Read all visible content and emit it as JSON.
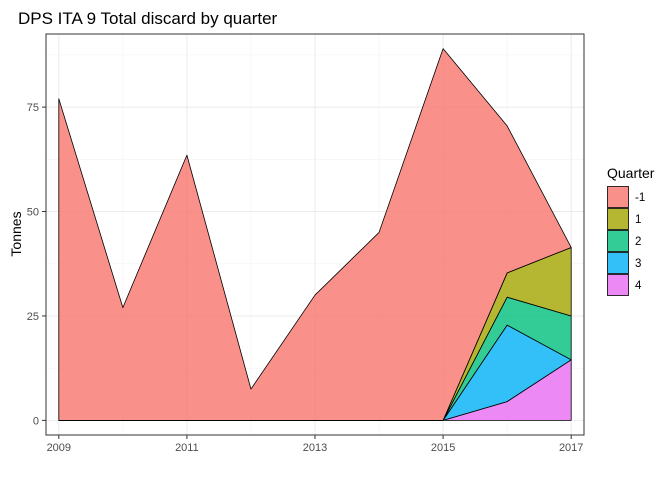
{
  "chart_data": {
    "type": "area",
    "stacked": true,
    "title": "DPS ITA 9 Total discard by quarter",
    "xlabel": "",
    "ylabel": "Tonnes",
    "x": [
      2009,
      2010,
      2011,
      2012,
      2013,
      2014,
      2015,
      2016,
      2017
    ],
    "xticks": [
      2009,
      2011,
      2013,
      2015,
      2017
    ],
    "yticks": [
      0,
      25,
      50,
      75
    ],
    "xlim": [
      2008.8,
      2017.2
    ],
    "ylim": [
      -3.5,
      92.5
    ],
    "grid": true,
    "legend": {
      "title": "Quarter",
      "position": "right"
    },
    "series": [
      {
        "name": "-1",
        "color": "#F8766D",
        "values": [
          77,
          27,
          63.5,
          7.5,
          30,
          45,
          89,
          35.2,
          0
        ]
      },
      {
        "name": "1",
        "color": "#A3A500",
        "values": [
          0,
          0,
          0,
          0,
          0,
          0,
          0,
          5.8,
          16.4
        ]
      },
      {
        "name": "2",
        "color": "#00BF7D",
        "values": [
          0,
          0,
          0,
          0,
          0,
          0,
          0,
          6.7,
          10.5
        ]
      },
      {
        "name": "3",
        "color": "#00B0F6",
        "values": [
          0,
          0,
          0,
          0,
          0,
          0,
          0,
          18.3,
          0
        ]
      },
      {
        "name": "4",
        "color": "#E76BF3",
        "values": [
          0,
          0,
          0,
          0,
          0,
          0,
          0,
          4.5,
          14.5
        ]
      }
    ]
  }
}
